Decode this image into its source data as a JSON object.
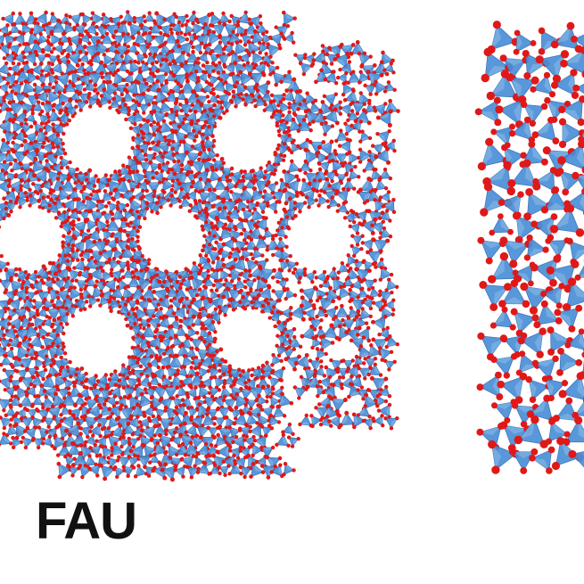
{
  "figure": {
    "framework_label": "FAU"
  },
  "colors": {
    "tetrahedron": "#4a8fd6",
    "tetrahedron_dark": "#2f6fb8",
    "tetrahedron_light": "#8dbbe8",
    "oxygen": "#e01818",
    "background": "#ffffff"
  }
}
